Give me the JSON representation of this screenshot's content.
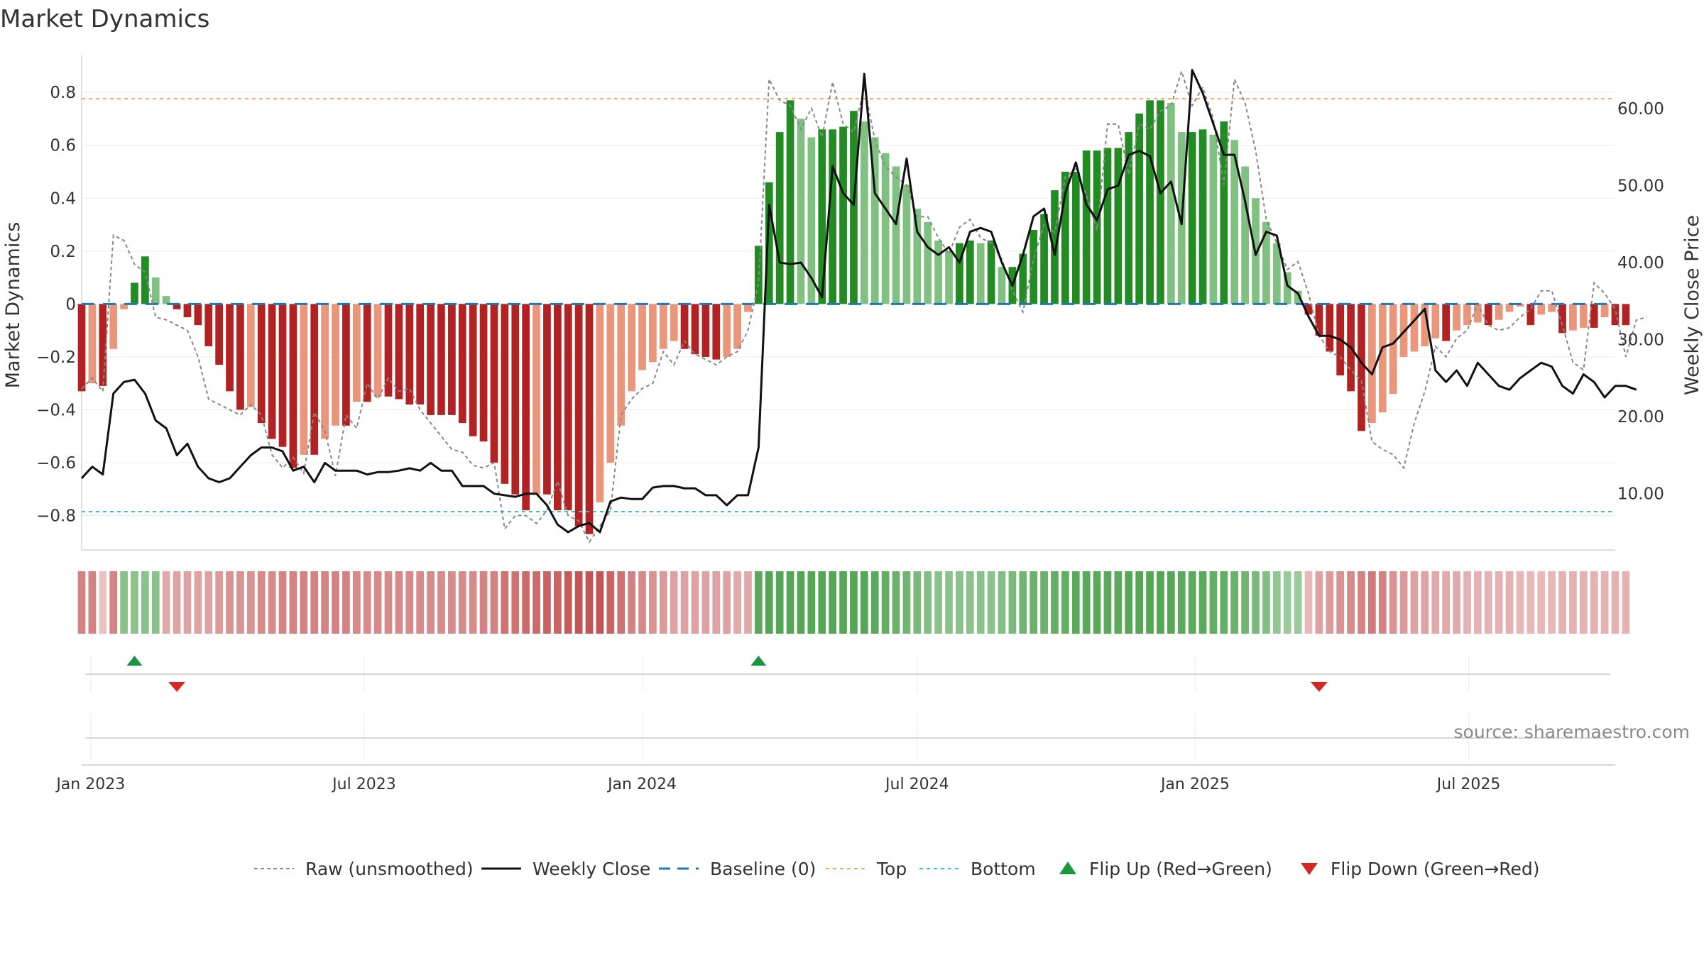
{
  "chart_data": {
    "type": "bar",
    "title": "Market Dynamics",
    "ylabel": "Market Dynamics",
    "y2label": "Weekly Close Price",
    "source": "source: sharemaestro.com",
    "x_range": [
      "2022-12-26",
      "2025-10-06"
    ],
    "ylim": [
      -0.93,
      0.94
    ],
    "y2lim": [
      2.7,
      66.9
    ],
    "yticks": [
      "0.8",
      "0.6",
      "0.4",
      "0.2",
      "0",
      "−0.2",
      "−0.4",
      "−0.6",
      "−0.8"
    ],
    "yticks_values": [
      0.8,
      0.6,
      0.4,
      0.2,
      0,
      -0.2,
      -0.4,
      -0.6,
      -0.8
    ],
    "y2ticks": [
      "60.00",
      "50.00",
      "40.00",
      "30.00",
      "20.00",
      "10.00"
    ],
    "y2ticks_values": [
      60,
      50,
      40,
      30,
      20,
      10
    ],
    "xticks": [
      "Jan 2023",
      "Jul 2023",
      "Jan 2024",
      "Jul 2024",
      "Jan 2025",
      "Jul 2025"
    ],
    "xticks_dates": [
      "2023-01-01",
      "2023-07-01",
      "2024-01-01",
      "2024-07-01",
      "2025-01-01",
      "2025-07-01"
    ],
    "start_week": "2022-12-26",
    "grid": true,
    "legend_position": "bottom",
    "top_level": 0.776,
    "bottom_level": -0.785,
    "baseline": 0,
    "colors": {
      "strong_red": "#b22222",
      "light_red": "#e9967a",
      "strong_green": "#228b22",
      "light_green": "#80c080",
      "close": "#111111",
      "raw": "#888888",
      "baseline": "#1f77b4",
      "top": "#f4a460",
      "bottom": "#40c0c0",
      "flip_up": "#1a9641",
      "flip_down": "#d62728"
    },
    "series": [
      {
        "name": "Market Dynamics",
        "kind": "bars",
        "values": [
          -0.33,
          -0.3,
          -0.31,
          -0.17,
          -0.02,
          0.08,
          0.18,
          0.1,
          0.03,
          -0.02,
          -0.05,
          -0.08,
          -0.16,
          -0.23,
          -0.33,
          -0.4,
          -0.39,
          -0.45,
          -0.51,
          -0.54,
          -0.62,
          -0.57,
          -0.57,
          -0.51,
          -0.46,
          -0.46,
          -0.37,
          -0.37,
          -0.35,
          -0.35,
          -0.36,
          -0.38,
          -0.38,
          -0.42,
          -0.42,
          -0.42,
          -0.45,
          -0.5,
          -0.52,
          -0.6,
          -0.68,
          -0.72,
          -0.78,
          -0.72,
          -0.72,
          -0.78,
          -0.78,
          -0.84,
          -0.87,
          -0.75,
          -0.6,
          -0.46,
          -0.33,
          -0.25,
          -0.22,
          -0.17,
          -0.14,
          -0.17,
          -0.19,
          -0.2,
          -0.21,
          -0.2,
          -0.17,
          -0.03,
          0.22,
          0.46,
          0.65,
          0.77,
          0.7,
          0.63,
          0.66,
          0.66,
          0.67,
          0.73,
          0.69,
          0.63,
          0.57,
          0.52,
          0.45,
          0.36,
          0.31,
          0.24,
          0.2,
          0.23,
          0.24,
          0.23,
          0.24,
          0.14,
          0.14,
          0.19,
          0.28,
          0.34,
          0.43,
          0.5,
          0.5,
          0.58,
          0.58,
          0.59,
          0.59,
          0.65,
          0.72,
          0.77,
          0.77,
          0.76,
          0.65,
          0.65,
          0.66,
          0.64,
          0.69,
          0.62,
          0.52,
          0.4,
          0.31,
          0.23,
          0.12,
          0.05,
          -0.04,
          -0.12,
          -0.18,
          -0.27,
          -0.33,
          -0.48,
          -0.45,
          -0.41,
          -0.34,
          -0.2,
          -0.18,
          -0.16,
          -0.13,
          -0.14,
          -0.1,
          -0.08,
          -0.07,
          -0.08,
          -0.06,
          -0.03,
          -0.01,
          -0.08,
          -0.04,
          -0.03,
          -0.11,
          -0.1,
          -0.09,
          -0.09,
          -0.05,
          -0.08,
          -0.08
        ]
      },
      {
        "name": "Raw (unsmoothed)",
        "kind": "line",
        "values": [
          -0.32,
          -0.28,
          -0.33,
          0.26,
          0.24,
          0.15,
          0.12,
          -0.05,
          -0.06,
          -0.08,
          -0.1,
          -0.2,
          -0.36,
          -0.38,
          -0.4,
          -0.42,
          -0.38,
          -0.42,
          -0.57,
          -0.62,
          -0.58,
          -0.64,
          -0.41,
          -0.48,
          -0.65,
          -0.42,
          -0.47,
          -0.3,
          -0.36,
          -0.28,
          -0.33,
          -0.32,
          -0.4,
          -0.45,
          -0.5,
          -0.55,
          -0.56,
          -0.61,
          -0.62,
          -0.6,
          -0.85,
          -0.8,
          -0.8,
          -0.83,
          -0.78,
          -0.67,
          -0.8,
          -0.82,
          -0.9,
          -0.84,
          -0.78,
          -0.42,
          -0.36,
          -0.32,
          -0.3,
          -0.18,
          -0.23,
          -0.14,
          -0.19,
          -0.21,
          -0.23,
          -0.2,
          -0.18,
          -0.1,
          0.08,
          0.85,
          0.77,
          0.75,
          0.66,
          0.74,
          0.63,
          0.84,
          0.68,
          0.65,
          0.82,
          0.62,
          0.52,
          0.48,
          0.45,
          0.33,
          0.33,
          0.25,
          0.19,
          0.29,
          0.32,
          0.25,
          0.23,
          0.17,
          0.05,
          -0.03,
          0.17,
          0.3,
          0.27,
          0.48,
          0.51,
          0.41,
          0.28,
          0.68,
          0.68,
          0.49,
          0.68,
          0.66,
          0.73,
          0.75,
          0.88,
          0.75,
          0.82,
          0.7,
          0.45,
          0.85,
          0.76,
          0.58,
          0.32,
          0.23,
          0.13,
          0.16,
          0.04,
          -0.12,
          -0.18,
          -0.2,
          -0.25,
          -0.29,
          -0.52,
          -0.55,
          -0.57,
          -0.62,
          -0.45,
          -0.33,
          -0.16,
          -0.2,
          -0.13,
          -0.1,
          0.0,
          -0.08,
          -0.1,
          -0.09,
          -0.05,
          -0.02,
          0.05,
          0.05,
          -0.08,
          -0.22,
          -0.25,
          0.08,
          0.04,
          -0.02,
          -0.2,
          -0.06,
          -0.05
        ]
      },
      {
        "name": "Weekly Close",
        "kind": "line",
        "axis": "right",
        "values": [
          12.0,
          13.5,
          12.5,
          23.0,
          24.5,
          24.8,
          23.0,
          19.5,
          18.5,
          15.0,
          16.5,
          13.5,
          12.0,
          11.5,
          12.0,
          13.5,
          15.0,
          16.0,
          16.0,
          15.5,
          13.0,
          13.5,
          11.5,
          14.0,
          13.0,
          13.0,
          13.0,
          12.5,
          12.8,
          12.8,
          13.0,
          13.3,
          13.0,
          14.0,
          13.0,
          13.0,
          11.0,
          11.0,
          11.0,
          10.0,
          9.8,
          9.6,
          10.0,
          10.0,
          8.5,
          6.0,
          5.0,
          5.8,
          6.2,
          5.0,
          9.0,
          9.5,
          9.3,
          9.3,
          10.8,
          11.0,
          11.0,
          10.7,
          10.7,
          9.8,
          9.8,
          8.5,
          9.8,
          9.8,
          16.0,
          47.5,
          40.0,
          39.8,
          40.0,
          38.0,
          35.5,
          52.5,
          49.0,
          47.5,
          64.5,
          49.0,
          47.0,
          45.0,
          53.5,
          44.0,
          42.0,
          41.0,
          42.0,
          40.0,
          44.0,
          44.5,
          44.0,
          40.0,
          37.0,
          41.0,
          46.0,
          47.0,
          41.0,
          49.0,
          53.0,
          47.5,
          45.5,
          49.5,
          50.0,
          54.0,
          54.5,
          53.8,
          49.0,
          50.5,
          45.0,
          65.0,
          62.0,
          58.0,
          54.0,
          54.0,
          48.0,
          41.0,
          44.0,
          43.5,
          37.0,
          36.0,
          33.0,
          30.5,
          30.5,
          30.0,
          29.0,
          27.0,
          25.5,
          29.0,
          29.5,
          31.0,
          32.5,
          34.0,
          26.0,
          24.5,
          26.0,
          24.0,
          27.0,
          25.5,
          24.0,
          23.5,
          25.0,
          26.0,
          27.0,
          26.5,
          24.0,
          23.0,
          25.5,
          24.5,
          22.5,
          24.0,
          24.0,
          23.5
        ]
      }
    ],
    "regime_strip": [
      -0.55,
      -0.55,
      -0.15,
      -0.55,
      0.4,
      0.4,
      0.4,
      0.4,
      -0.3,
      -0.35,
      -0.35,
      -0.35,
      -0.35,
      -0.4,
      -0.45,
      -0.45,
      -0.45,
      -0.5,
      -0.5,
      -0.55,
      -0.55,
      -0.55,
      -0.55,
      -0.55,
      -0.55,
      -0.55,
      -0.5,
      -0.5,
      -0.5,
      -0.5,
      -0.5,
      -0.5,
      -0.5,
      -0.5,
      -0.5,
      -0.5,
      -0.5,
      -0.5,
      -0.55,
      -0.55,
      -0.65,
      -0.65,
      -0.7,
      -0.7,
      -0.75,
      -0.75,
      -0.8,
      -0.85,
      -0.85,
      -0.85,
      -0.75,
      -0.65,
      -0.55,
      -0.5,
      -0.45,
      -0.4,
      -0.35,
      -0.35,
      -0.35,
      -0.35,
      -0.35,
      -0.35,
      -0.3,
      -0.3,
      0.7,
      0.75,
      0.75,
      0.75,
      0.75,
      0.75,
      0.75,
      0.75,
      0.75,
      0.75,
      0.75,
      0.7,
      0.65,
      0.6,
      0.55,
      0.5,
      0.45,
      0.4,
      0.4,
      0.4,
      0.4,
      0.4,
      0.4,
      0.45,
      0.5,
      0.55,
      0.6,
      0.6,
      0.65,
      0.65,
      0.7,
      0.7,
      0.7,
      0.7,
      0.7,
      0.75,
      0.75,
      0.75,
      0.75,
      0.75,
      0.7,
      0.7,
      0.7,
      0.65,
      0.65,
      0.6,
      0.55,
      0.5,
      0.45,
      0.35,
      0.3,
      0.3,
      -0.2,
      -0.35,
      -0.4,
      -0.45,
      -0.5,
      -0.55,
      -0.6,
      -0.55,
      -0.45,
      -0.4,
      -0.35,
      -0.35,
      -0.3,
      -0.3,
      -0.3,
      -0.25,
      -0.25,
      -0.25,
      -0.25,
      -0.25,
      -0.2,
      -0.2,
      -0.2,
      -0.2,
      -0.25,
      -0.25,
      -0.25,
      -0.25,
      -0.25,
      -0.25,
      -0.25
    ],
    "flips_up": [
      5,
      64
    ],
    "flips_down": [
      9,
      117
    ],
    "legend": [
      {
        "label": "Raw (unsmoothed)",
        "style": "dotted-gray"
      },
      {
        "label": "Weekly Close",
        "style": "solid-black"
      },
      {
        "label": "Baseline (0)",
        "style": "dashed-blue"
      },
      {
        "label": "Top",
        "style": "dotted-orange"
      },
      {
        "label": "Bottom",
        "style": "dotted-cyan"
      },
      {
        "label": "Flip Up (Red→Green)",
        "style": "triangle-up-green"
      },
      {
        "label": "Flip Down (Green→Red)",
        "style": "triangle-down-red"
      }
    ]
  }
}
